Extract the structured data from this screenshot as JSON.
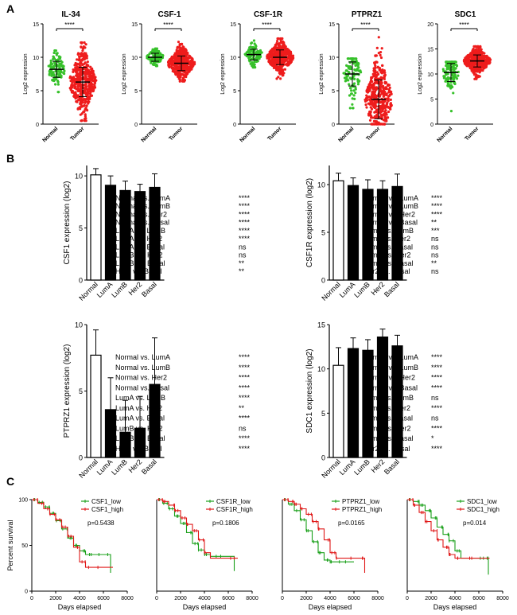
{
  "panels": {
    "a": "A",
    "b": "B",
    "c": "C"
  },
  "colors": {
    "normal": "#36c12a",
    "tumor": "#ee1c1c",
    "bar_normal": "#ffffff",
    "bar_subtype": "#000000",
    "km_low": "#1aa01a",
    "km_high": "#e01818"
  },
  "chart_data": [
    {
      "id": "a-il34",
      "type": "scatter",
      "title": "IL-34",
      "ylabel": "Log2 expression",
      "categories": [
        "Normal",
        "Tumor"
      ],
      "ylim": [
        0,
        15
      ],
      "yticks": [
        0,
        5,
        10,
        15
      ],
      "groups": [
        {
          "name": "Normal",
          "mean": 8.2,
          "sd": 1.2,
          "min": 4.8,
          "max": 11.0,
          "n": 110
        },
        {
          "name": "Tumor",
          "mean": 6.3,
          "sd": 2.2,
          "min": 0.5,
          "max": 12.2,
          "n": 420
        }
      ],
      "significance": "****"
    },
    {
      "id": "a-csf1",
      "type": "scatter",
      "title": "CSF-1",
      "ylabel": "Log2 expression",
      "categories": [
        "Normal",
        "Tumor"
      ],
      "ylim": [
        0,
        15
      ],
      "yticks": [
        0,
        5,
        10,
        15
      ],
      "groups": [
        {
          "name": "Normal",
          "mean": 10.0,
          "sd": 0.6,
          "min": 8.7,
          "max": 11.3,
          "n": 110
        },
        {
          "name": "Tumor",
          "mean": 9.1,
          "sd": 1.1,
          "min": 6.4,
          "max": 12.3,
          "n": 420
        }
      ],
      "significance": "****"
    },
    {
      "id": "a-csf1r",
      "type": "scatter",
      "title": "CSF-1R",
      "ylabel": "Log2 expression",
      "categories": [
        "Normal",
        "Tumor"
      ],
      "ylim": [
        0,
        15
      ],
      "yticks": [
        0,
        5,
        10,
        15
      ],
      "groups": [
        {
          "name": "Normal",
          "mean": 10.4,
          "sd": 0.8,
          "min": 8.5,
          "max": 12.5,
          "n": 110
        },
        {
          "name": "Tumor",
          "mean": 10.0,
          "sd": 1.1,
          "min": 6.8,
          "max": 12.8,
          "n": 420
        }
      ],
      "significance": "****"
    },
    {
      "id": "a-ptprz1",
      "type": "scatter",
      "title": "PTPRZ1",
      "ylabel": "Log2 expression",
      "categories": [
        "Normal",
        "Tumor"
      ],
      "ylim": [
        0,
        15
      ],
      "yticks": [
        0,
        5,
        10,
        15
      ],
      "groups": [
        {
          "name": "Normal",
          "mean": 7.5,
          "sd": 1.8,
          "min": 2.4,
          "max": 9.8,
          "n": 110
        },
        {
          "name": "Tumor",
          "mean": 3.7,
          "sd": 2.9,
          "min": 0.0,
          "max": 13.0,
          "n": 420
        }
      ],
      "significance": "****"
    },
    {
      "id": "a-sdc1",
      "type": "scatter",
      "title": "SDC1",
      "ylabel": "Log2 expression",
      "categories": [
        "Normal",
        "Tumor"
      ],
      "ylim": [
        0,
        20
      ],
      "yticks": [
        0,
        5,
        10,
        15,
        20
      ],
      "groups": [
        {
          "name": "Normal",
          "mean": 10.3,
          "sd": 1.8,
          "min": 2.6,
          "max": 12.4,
          "n": 110
        },
        {
          "name": "Tumor",
          "mean": 12.6,
          "sd": 1.2,
          "min": 9.0,
          "max": 15.5,
          "n": 420
        }
      ],
      "significance": "****"
    },
    {
      "id": "b-csf1",
      "type": "bar",
      "ylabel": "CSF1 expression (log2)",
      "categories": [
        "Normal",
        "LumA",
        "LumB",
        "Her2",
        "Basal"
      ],
      "values": [
        10.1,
        9.1,
        8.6,
        8.5,
        8.9
      ],
      "errors": [
        0.6,
        0.9,
        0.9,
        0.7,
        1.3
      ],
      "ylim": [
        0,
        11
      ],
      "yticks": [
        0,
        5,
        10
      ],
      "comparisons": [
        [
          "Normal vs. LumA",
          "****"
        ],
        [
          "Normal vs. LumB",
          "****"
        ],
        [
          "Normal vs. Her2",
          "****"
        ],
        [
          "Normal vs. Basal",
          "****"
        ],
        [
          "LumA vs. LumB",
          "****"
        ],
        [
          "LumA vs. Her2",
          "****"
        ],
        [
          "LumA vs. Basal",
          "ns"
        ],
        [
          "LumB vs. Her2",
          "ns"
        ],
        [
          "LumB vs. Basal",
          "**"
        ],
        [
          "Her2 vs. Basal",
          "**"
        ]
      ]
    },
    {
      "id": "b-csf1r",
      "type": "bar",
      "ylabel": "CSF1R expression (log2)",
      "categories": [
        "Normal",
        "LumA",
        "LumB",
        "Her2",
        "Basal"
      ],
      "values": [
        10.4,
        9.9,
        9.5,
        9.5,
        9.8
      ],
      "errors": [
        0.8,
        0.8,
        1.0,
        0.9,
        1.3
      ],
      "ylim": [
        0,
        12
      ],
      "yticks": [
        0,
        5,
        10
      ],
      "comparisons": [
        [
          "Normal vs. LumA",
          "****"
        ],
        [
          "Normal vs. LumB",
          "****"
        ],
        [
          "Normal vs. Her2",
          "****"
        ],
        [
          "Normal vs. Basal",
          "**"
        ],
        [
          "LumA vs. LumB",
          "***"
        ],
        [
          "LumA vs. Her2",
          "ns"
        ],
        [
          "LumA vs. Basal",
          "ns"
        ],
        [
          "LumB vs. Her2",
          "ns"
        ],
        [
          "LumB vs. Basal",
          "**"
        ],
        [
          "Her2 vs. Basal",
          "ns"
        ]
      ]
    },
    {
      "id": "b-ptprz1",
      "type": "bar",
      "ylabel": "PTPRZ1 expression (log2)",
      "categories": [
        "Normal",
        "LumA",
        "LumB",
        "Her2",
        "Basal"
      ],
      "values": [
        7.7,
        3.6,
        1.9,
        2.2,
        5.5
      ],
      "errors": [
        1.9,
        2.4,
        2.4,
        2.4,
        3.5
      ],
      "ylim": [
        0,
        10
      ],
      "yticks": [
        0,
        5,
        10
      ],
      "comparisons": [
        [
          "Normal vs. LumA",
          "****"
        ],
        [
          "Normal vs. LumB",
          "****"
        ],
        [
          "Normal vs. Her2",
          "****"
        ],
        [
          "Normal vs. Basal",
          "****"
        ],
        [
          "LumA vs. LumB",
          "****"
        ],
        [
          "LumA vs. Her2",
          "**"
        ],
        [
          "LumA vs. Basal",
          "****"
        ],
        [
          "LumB vs. Her2",
          "ns"
        ],
        [
          "LumB vs. Basal",
          "****"
        ],
        [
          "Her2 vs. Basal",
          "****"
        ]
      ]
    },
    {
      "id": "b-sdc1",
      "type": "bar",
      "ylabel": "SDC1 expression (log2)",
      "categories": [
        "Normal",
        "LumA",
        "LumB",
        "Her2",
        "Basal"
      ],
      "values": [
        10.4,
        12.3,
        12.1,
        13.6,
        12.6
      ],
      "errors": [
        2.0,
        1.2,
        1.2,
        0.9,
        1.2
      ],
      "ylim": [
        0,
        15
      ],
      "yticks": [
        0,
        5,
        10,
        15
      ],
      "comparisons": [
        [
          "Normal vs. LumA",
          "****"
        ],
        [
          "Normal vs. LumB",
          "****"
        ],
        [
          "Normal vs. Her2",
          "****"
        ],
        [
          "Normal vs. Basal",
          "****"
        ],
        [
          "LumA vs. LumB",
          "ns"
        ],
        [
          "LumA vs. Her2",
          "****"
        ],
        [
          "LumA vs. Basal",
          "ns"
        ],
        [
          "LumB vs. Her2",
          "****"
        ],
        [
          "LumB vs. Basal",
          "*"
        ],
        [
          "Her2 vs. Basal",
          "****"
        ]
      ]
    },
    {
      "id": "c-csf1",
      "type": "line",
      "ylabel": "Percent survival",
      "xlabel": "Days elapsed",
      "xlim": [
        0,
        8000
      ],
      "xticks": [
        0,
        2000,
        4000,
        6000,
        8000
      ],
      "ylim": [
        0,
        100
      ],
      "yticks": [
        0,
        50,
        100
      ],
      "legend": [
        "CSF1_low",
        "CSF1_high"
      ],
      "pvalue": "p=0.5438",
      "series": [
        {
          "name": "CSF1_low",
          "x": [
            0,
            500,
            1000,
            1500,
            2000,
            2500,
            3000,
            3500,
            4000,
            4500,
            5000,
            6600
          ],
          "y": [
            100,
            97,
            92,
            85,
            77,
            68,
            58,
            50,
            44,
            40,
            40,
            20
          ]
        },
        {
          "name": "CSF1_high",
          "x": [
            0,
            500,
            1000,
            1500,
            2000,
            2500,
            3000,
            3500,
            4000,
            4500,
            6800
          ],
          "y": [
            100,
            96,
            90,
            84,
            78,
            70,
            60,
            48,
            32,
            26,
            26
          ]
        }
      ]
    },
    {
      "id": "c-csf1r",
      "type": "line",
      "ylabel": "",
      "xlabel": "Days elapsed",
      "xlim": [
        0,
        8000
      ],
      "xticks": [
        0,
        2000,
        4000,
        6000,
        8000
      ],
      "ylim": [
        0,
        100
      ],
      "yticks": [],
      "legend": [
        "CSF1R_low",
        "CSF1R_high"
      ],
      "pvalue": "p=0.1806",
      "series": [
        {
          "name": "CSF1R_low",
          "x": [
            0,
            500,
            1000,
            1500,
            2000,
            2500,
            3000,
            3500,
            4000,
            4500,
            6500
          ],
          "y": [
            100,
            96,
            90,
            82,
            74,
            64,
            52,
            45,
            40,
            38,
            22
          ]
        },
        {
          "name": "CSF1R_high",
          "x": [
            0,
            500,
            1000,
            1500,
            2000,
            2500,
            3000,
            3500,
            4000,
            4500,
            6800
          ],
          "y": [
            100,
            98,
            94,
            88,
            80,
            73,
            66,
            56,
            42,
            36,
            36
          ]
        }
      ]
    },
    {
      "id": "c-ptprz1",
      "type": "line",
      "ylabel": "",
      "xlabel": "Days elapsed",
      "xlim": [
        0,
        8000
      ],
      "xticks": [
        0,
        2000,
        4000,
        6000,
        8000
      ],
      "ylim": [
        0,
        100
      ],
      "yticks": [],
      "legend": [
        "PTPRZ1_low",
        "PTPRZ1_high"
      ],
      "pvalue": "p=0.0165",
      "series": [
        {
          "name": "PTPRZ1_low",
          "x": [
            0,
            500,
            1000,
            1500,
            2000,
            2500,
            3000,
            3500,
            4000,
            4500,
            6000
          ],
          "y": [
            100,
            95,
            88,
            78,
            66,
            54,
            42,
            34,
            32,
            32,
            32
          ]
        },
        {
          "name": "PTPRZ1_high",
          "x": [
            0,
            500,
            1000,
            1500,
            2000,
            2500,
            3000,
            3500,
            4000,
            4500,
            6500,
            6900
          ],
          "y": [
            100,
            98,
            95,
            90,
            84,
            76,
            68,
            56,
            42,
            36,
            36,
            20
          ]
        }
      ]
    },
    {
      "id": "c-sdc1",
      "type": "line",
      "ylabel": "",
      "xlabel": "Days elapsed",
      "xlim": [
        0,
        8000
      ],
      "xticks": [
        0,
        2000,
        4000,
        6000,
        8000
      ],
      "ylim": [
        0,
        100
      ],
      "yticks": [],
      "legend": [
        "SDC1_low",
        "SDC1_high"
      ],
      "pvalue": "p=0.014",
      "series": [
        {
          "name": "SDC1_low",
          "x": [
            0,
            500,
            1000,
            1500,
            2000,
            2500,
            3000,
            3500,
            4000,
            4500,
            6500,
            6800
          ],
          "y": [
            100,
            98,
            94,
            88,
            80,
            70,
            62,
            55,
            44,
            36,
            36,
            18
          ]
        },
        {
          "name": "SDC1_high",
          "x": [
            0,
            500,
            1000,
            1500,
            2000,
            2500,
            3000,
            3500,
            4000,
            4500,
            6900
          ],
          "y": [
            100,
            94,
            86,
            76,
            66,
            56,
            48,
            40,
            36,
            36,
            36
          ]
        }
      ]
    }
  ]
}
